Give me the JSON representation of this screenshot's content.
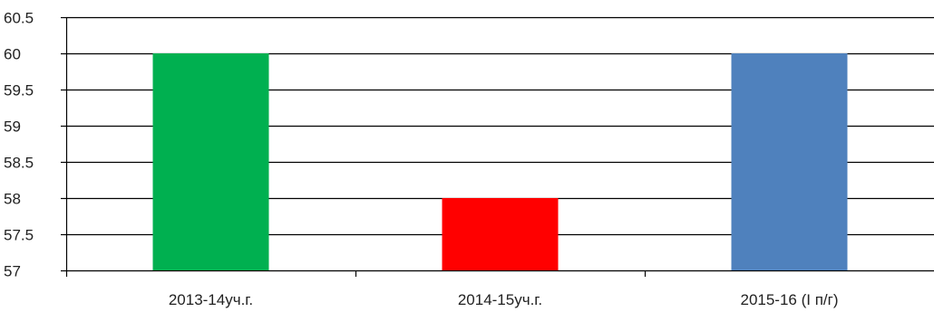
{
  "chart_data": {
    "type": "bar",
    "title": "",
    "xlabel": "",
    "ylabel": "",
    "categories": [
      "2013-14уч.г.",
      "2014-15уч.г.",
      "2015-16 (I п/г)"
    ],
    "values": [
      60,
      58,
      60
    ],
    "colors": [
      "#00b050",
      "#ff0000",
      "#4f81bd"
    ],
    "ylim": [
      57,
      60.5
    ],
    "yticks": [
      "57",
      "57.5",
      "58",
      "58.5",
      "59",
      "59.5",
      "60",
      "60.5"
    ],
    "grid": true,
    "legend": "none"
  }
}
